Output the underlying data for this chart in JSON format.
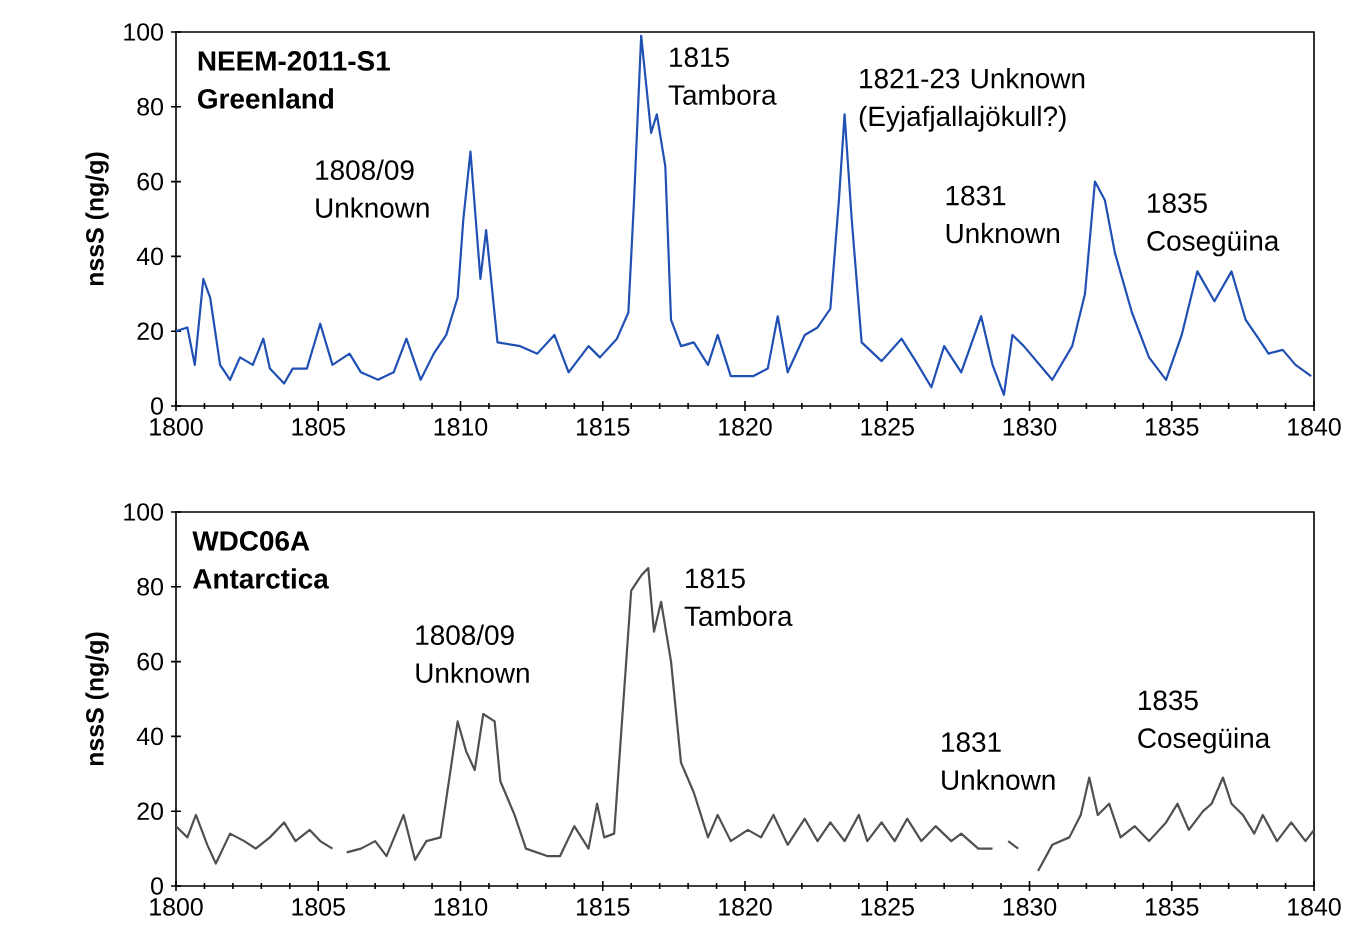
{
  "chart_data": [
    {
      "type": "line",
      "color": "#2050b4",
      "ylabel": "nssS (ng/g)",
      "xlim": [
        1800,
        1840
      ],
      "ylim": [
        0,
        100
      ],
      "xticks": [
        1800,
        1805,
        1810,
        1815,
        1820,
        1825,
        1830,
        1835,
        1840
      ],
      "yticks": [
        0,
        20,
        40,
        60,
        80,
        100
      ],
      "x": [
        1800,
        1800.4,
        1800.66,
        1800.96,
        1801.2,
        1801.55,
        1801.9,
        1802.25,
        1802.7,
        1803.07,
        1803.3,
        1803.8,
        1804.1,
        1804.6,
        1805.07,
        1805.5,
        1806.1,
        1806.5,
        1807.1,
        1807.65,
        1808.1,
        1808.6,
        1809.06,
        1809.5,
        1809.9,
        1810.1,
        1810.35,
        1810.7,
        1810.9,
        1811.3,
        1812.1,
        1812.7,
        1813.3,
        1813.8,
        1814.5,
        1814.9,
        1815.5,
        1815.9,
        1816.1,
        1816.35,
        1816.7,
        1816.9,
        1817.2,
        1817.4,
        1817.75,
        1818.2,
        1818.7,
        1819.04,
        1819.5,
        1820.3,
        1820.8,
        1821.15,
        1821.5,
        1822.1,
        1822.55,
        1823.0,
        1823.3,
        1823.5,
        1823.75,
        1824.1,
        1824.8,
        1825.5,
        1826,
        1826.55,
        1827.0,
        1827.6,
        1828.3,
        1828.7,
        1829.1,
        1829.4,
        1829.8,
        1830.8,
        1831.5,
        1831.95,
        1832.3,
        1832.65,
        1833.0,
        1833.6,
        1834.2,
        1834.8,
        1835.35,
        1835.9,
        1836.5,
        1837.1,
        1837.6,
        1838.05,
        1838.4,
        1838.9,
        1839.35,
        1839.9
      ],
      "values": [
        20,
        21,
        11,
        34,
        29,
        11,
        7,
        13,
        11,
        18,
        10,
        6,
        10,
        10,
        22,
        11,
        14,
        9,
        7,
        9,
        18,
        7,
        14,
        19,
        29,
        50,
        68,
        34,
        47,
        17,
        16,
        14,
        19,
        9,
        16,
        13,
        18,
        25,
        55,
        99,
        73,
        78,
        64,
        23,
        16,
        17,
        11,
        19,
        8,
        8,
        10,
        24,
        9,
        19,
        21,
        26,
        55,
        78,
        50,
        17,
        12,
        18,
        12,
        5,
        16,
        9,
        24,
        11,
        3,
        19,
        16,
        7,
        16,
        30,
        60,
        55,
        41,
        25,
        13,
        7,
        19,
        36,
        28,
        36,
        23,
        18,
        14,
        15,
        11,
        8
      ],
      "annotations": [
        "NEEM-2011-S1 Greenland",
        "1808/09 Unknown",
        "1815 Tambora",
        "1821-23 Unknown (Eyjafjallajökull?)",
        "1831 Unknown",
        "1835 Cosegüina"
      ]
    },
    {
      "type": "line",
      "color": "#505050",
      "ylabel": "nssS (ng/g)",
      "xlim": [
        1800,
        1840
      ],
      "ylim": [
        0,
        100
      ],
      "xticks": [
        1800,
        1805,
        1810,
        1815,
        1820,
        1825,
        1830,
        1835,
        1840
      ],
      "yticks": [
        0,
        20,
        40,
        60,
        80,
        100
      ],
      "x": [
        1800,
        1800.4,
        1800.7,
        1801.1,
        1801.4,
        1801.9,
        1802.4,
        1802.8,
        1803.3,
        1803.8,
        1804.2,
        1804.7,
        1805.07,
        1805.5,
        1805.7,
        1806.0,
        1806.5,
        1807.0,
        1807.4,
        1808.0,
        1808.4,
        1808.8,
        1809.3,
        1809.65,
        1809.9,
        1810.2,
        1810.5,
        1810.8,
        1811.2,
        1811.4,
        1811.9,
        1812.3,
        1813.05,
        1813.5,
        1814.0,
        1814.5,
        1814.8,
        1815.05,
        1815.4,
        1815.75,
        1816.0,
        1816.35,
        1816.6,
        1816.8,
        1817.05,
        1817.4,
        1817.75,
        1818.2,
        1818.7,
        1819.04,
        1819.5,
        1820.1,
        1820.56,
        1821.0,
        1821.5,
        1822.1,
        1822.55,
        1823.0,
        1823.5,
        1824.0,
        1824.3,
        1824.8,
        1825.26,
        1825.7,
        1826.2,
        1826.7,
        1827.25,
        1827.6,
        1828.2,
        1828.7,
        1829.0,
        1829.25,
        1829.6,
        1830.0,
        1830.3,
        1830.8,
        1831.4,
        1831.8,
        1832.1,
        1832.4,
        1832.8,
        1833.2,
        1833.7,
        1834.2,
        1834.8,
        1835.2,
        1835.6,
        1836.1,
        1836.4,
        1836.8,
        1837.1,
        1837.5,
        1837.9,
        1838.2,
        1838.7,
        1839.2,
        1839.7,
        1840
      ],
      "values": [
        16,
        13,
        19,
        11,
        6,
        14,
        12,
        10,
        13,
        17,
        12,
        15,
        12,
        10,
        null,
        9,
        10,
        12,
        8,
        19,
        7,
        12,
        13,
        31,
        44,
        36,
        31,
        46,
        44,
        28,
        19,
        10,
        8,
        8,
        16,
        10,
        22,
        13,
        14,
        52,
        79,
        83,
        85,
        68,
        76,
        60,
        33,
        25,
        13,
        19,
        12,
        15,
        13,
        19,
        11,
        18,
        12,
        17,
        12,
        19,
        12,
        17,
        12,
        18,
        12,
        16,
        12,
        14,
        10,
        10,
        null,
        12,
        10,
        null,
        4,
        11,
        13,
        19,
        29,
        19,
        22,
        13,
        16,
        12,
        17,
        22,
        15,
        20,
        22,
        29,
        22,
        19,
        14,
        19,
        12,
        17,
        12,
        15
      ],
      "annotations": [
        "WDC06A Antarctica",
        "1808/09 Unknown",
        "1815 Tambora",
        "1831 Unknown",
        "1835 Cosegüina"
      ]
    }
  ]
}
